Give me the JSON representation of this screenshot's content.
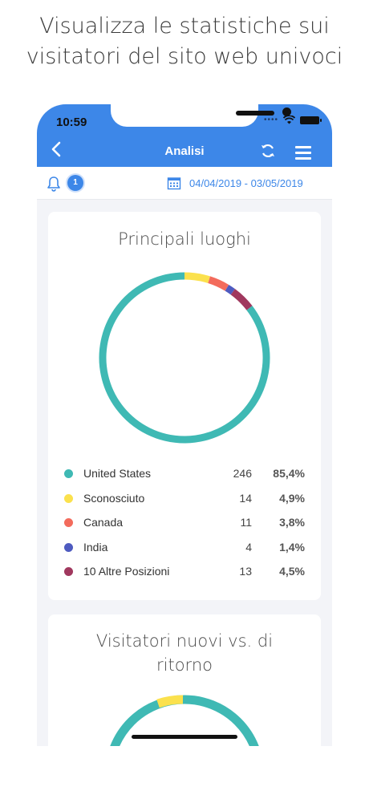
{
  "headline": {
    "line1": "Visualizza le statistiche sui",
    "line2": "visitatori del sito web univoci"
  },
  "status_bar": {
    "time": "10:59"
  },
  "appbar": {
    "title": "Analisi",
    "back_icon": "chevron-left-icon",
    "refresh_icon": "refresh-icon",
    "menu_icon": "hamburger-menu-icon"
  },
  "toolbar": {
    "notification_count": "1",
    "date_range": "04/04/2019 - 03/05/2019"
  },
  "colors": {
    "accent": "#3d87e8",
    "teal": "#3fb9b4",
    "yellow": "#fbe14d",
    "red": "#f36b5c",
    "blue": "#4e5bc0",
    "purple": "#a0385e"
  },
  "locations_card": {
    "title": "Principali luoghi",
    "legend": [
      {
        "name": "United States",
        "count": "246",
        "pct": "85,4%",
        "color": "#3fb9b4"
      },
      {
        "name": "Sconosciuto",
        "count": "14",
        "pct": "4,9%",
        "color": "#fbe14d"
      },
      {
        "name": "Canada",
        "count": "11",
        "pct": "3,8%",
        "color": "#f36b5c"
      },
      {
        "name": "India",
        "count": "4",
        "pct": "1,4%",
        "color": "#4e5bc0"
      },
      {
        "name": "10 Altre Posizioni",
        "count": "13",
        "pct": "4,5%",
        "color": "#a0385e"
      }
    ]
  },
  "chart_data": {
    "type": "pie",
    "title": "Principali luoghi",
    "categories": [
      "United States",
      "Sconosciuto",
      "Canada",
      "India",
      "10 Altre Posizioni"
    ],
    "values": [
      246,
      14,
      11,
      4,
      13
    ],
    "percentages": [
      85.4,
      4.9,
      3.8,
      1.4,
      4.5
    ],
    "colors": [
      "#3fb9b4",
      "#fbe14d",
      "#f36b5c",
      "#4e5bc0",
      "#a0385e"
    ]
  },
  "visitors_card": {
    "title_line1": "Visitatori nuovi vs. di",
    "title_line2": "ritorno"
  }
}
